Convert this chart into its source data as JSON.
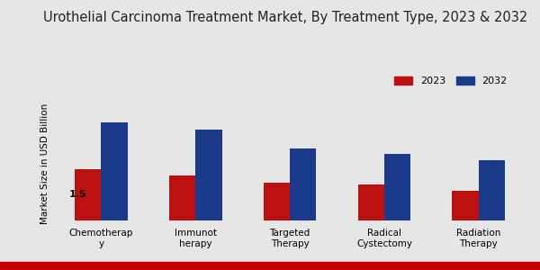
{
  "title": "Urothelial Carcinoma Treatment Market, By Treatment Type, 2023 & 2032",
  "ylabel": "Market Size in USD Billion",
  "xtick_labels": [
    "Chemotherap\ny",
    "Immunot\nherapy",
    "Targeted\nTherapy",
    "Radical\nCystectomy",
    "Radiation\nTherapy"
  ],
  "values_2023": [
    1.5,
    1.3,
    1.1,
    1.05,
    0.85
  ],
  "values_2032": [
    2.85,
    2.65,
    2.1,
    1.95,
    1.75
  ],
  "color_2023": "#bb1111",
  "color_2032": "#1a3a8a",
  "annotation_text": "1.5",
  "background_color": "#e6e6e6",
  "title_fontsize": 10.5,
  "legend_labels": [
    "2023",
    "2032"
  ],
  "bar_width": 0.28,
  "ylim": [
    0,
    3.3
  ],
  "bottom_bar_color": "#cc0000"
}
